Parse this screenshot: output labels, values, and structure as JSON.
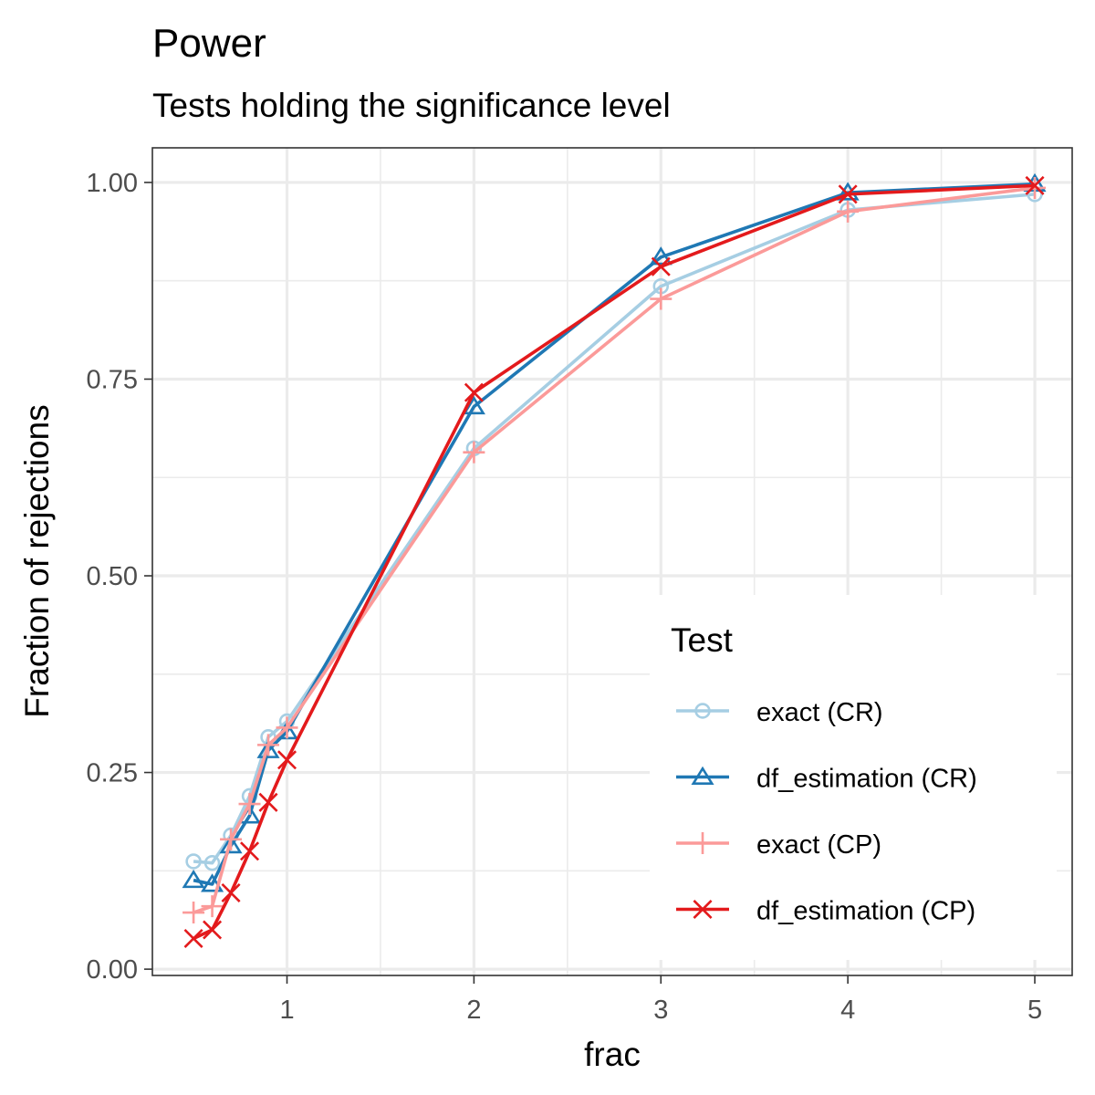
{
  "chart_data": {
    "type": "line",
    "title": "Power",
    "subtitle": "Tests holding the significance level",
    "xlabel": "frac",
    "ylabel": "Fraction of rejections",
    "xlim": [
      0.28,
      5.2
    ],
    "ylim": [
      -0.008,
      1.044
    ],
    "x_ticks": [
      1,
      2,
      3,
      4,
      5
    ],
    "x_tick_labels": [
      "1",
      "2",
      "3",
      "4",
      "5"
    ],
    "y_ticks": [
      0,
      0.25,
      0.5,
      0.75,
      1.0
    ],
    "y_tick_labels": [
      "0.00",
      "0.25",
      "0.50",
      "0.75",
      "1.00"
    ],
    "grid": true,
    "legend": {
      "title": "Test",
      "position": "bottom-right-inside"
    },
    "x": [
      0.5,
      0.6,
      0.7,
      0.8,
      0.9,
      1,
      2,
      3,
      4,
      5
    ],
    "series": [
      {
        "name": "exact (CR)",
        "color": "#a6cee3",
        "marker": "circle",
        "values": [
          0.137,
          0.135,
          0.17,
          0.22,
          0.295,
          0.315,
          0.662,
          0.868,
          0.965,
          0.985
        ]
      },
      {
        "name": "df_estimation (CR)",
        "color": "#1f78b4",
        "marker": "triangle",
        "values": [
          0.113,
          0.108,
          0.157,
          0.195,
          0.278,
          0.302,
          0.715,
          0.905,
          0.987,
          0.998
        ]
      },
      {
        "name": "exact (CP)",
        "color": "#fb9a99",
        "marker": "plus",
        "values": [
          0.072,
          0.08,
          0.165,
          0.21,
          0.285,
          0.307,
          0.657,
          0.852,
          0.963,
          0.993
        ]
      },
      {
        "name": "df_estimation (CP)",
        "color": "#e31a1c",
        "marker": "cross",
        "values": [
          0.039,
          0.05,
          0.097,
          0.15,
          0.212,
          0.266,
          0.733,
          0.893,
          0.985,
          0.996
        ]
      }
    ]
  }
}
